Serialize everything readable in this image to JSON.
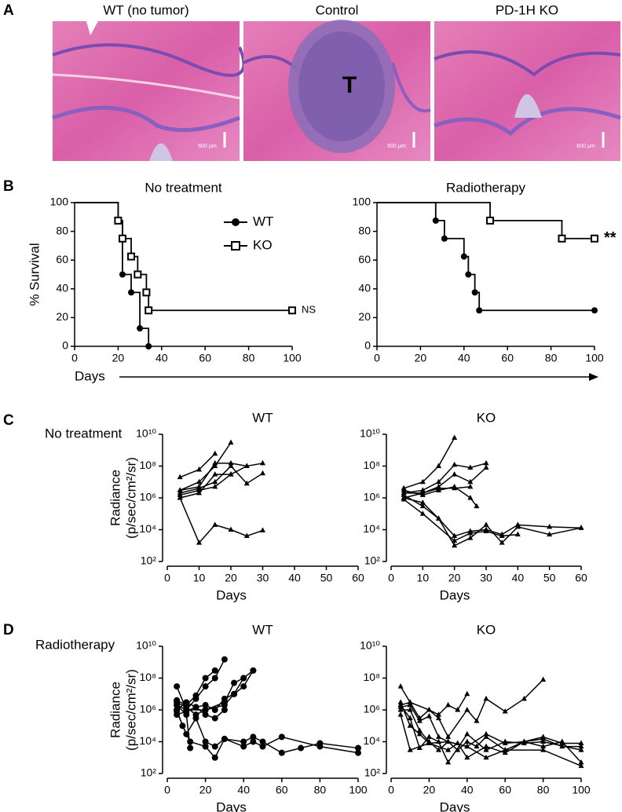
{
  "panel_labels": [
    "A",
    "B",
    "C",
    "D"
  ],
  "images": [
    {
      "title": "WT (no tumor)",
      "scale_label": "600 µm"
    },
    {
      "title": "Control",
      "label": "T",
      "scale_label": "600 µm"
    },
    {
      "title": "PD-1H KO",
      "scale_label": "600 µm"
    }
  ],
  "row_labels": [
    "No treatment",
    "Radiotherapy"
  ],
  "survival_xlabel": "Days",
  "chart_data": [
    {
      "type": "step",
      "title": "No treatment",
      "ylabel": "% Survival",
      "legend": true,
      "annotation": "NS",
      "xlim": [
        0,
        100
      ],
      "xticks": [
        0,
        20,
        40,
        60,
        80,
        100
      ],
      "ylim": [
        0,
        100
      ],
      "yticks": [
        0,
        20,
        40,
        60,
        80,
        100
      ],
      "series": [
        {
          "name": "WT",
          "color": "#000000",
          "marker": "circle",
          "x": [
            0,
            20,
            22,
            26,
            30,
            34
          ],
          "values": [
            100,
            87.5,
            50,
            37.5,
            12.5,
            0
          ]
        },
        {
          "name": "KO",
          "color": "#000000",
          "marker": "square",
          "x": [
            0,
            20,
            22,
            26,
            29,
            33,
            34,
            100
          ],
          "values": [
            100,
            87.5,
            75,
            62.5,
            50,
            37.5,
            25,
            25
          ]
        }
      ]
    },
    {
      "type": "step",
      "title": "Radiotherapy",
      "annotation": "**",
      "xlim": [
        0,
        100
      ],
      "xticks": [
        0,
        20,
        40,
        60,
        80,
        100
      ],
      "ylim": [
        0,
        100
      ],
      "yticks": [
        0,
        20,
        40,
        60,
        80,
        100
      ],
      "series": [
        {
          "color": "#000000",
          "marker": "circle",
          "x": [
            0,
            27,
            31,
            40,
            42,
            45,
            47,
            100
          ],
          "values": [
            100,
            87.5,
            75,
            62.5,
            50,
            37.5,
            25,
            25
          ]
        },
        {
          "color": "#000000",
          "marker": "square",
          "x": [
            0,
            52,
            85,
            100
          ],
          "values": [
            100,
            87.5,
            75,
            75
          ]
        }
      ]
    },
    {
      "type": "line",
      "title": "WT",
      "ylabel_lines": [
        "Radiance",
        "(p/sec/cm²/sr)"
      ],
      "xlabel": "Days",
      "log_y": true,
      "xlim": [
        0,
        60
      ],
      "xticks": [
        0,
        10,
        20,
        30,
        40,
        50,
        60
      ],
      "ylim": [
        100,
        10000000000
      ],
      "yticks": [
        {
          "value": 100,
          "label": "10²"
        },
        {
          "value": 10000,
          "label": "10⁴"
        },
        {
          "value": 1000000,
          "label": "10⁶"
        },
        {
          "value": 100000000,
          "label": "10⁸"
        },
        {
          "value": 10000000000,
          "label": "10¹⁰"
        }
      ],
      "color": "#000000",
      "marker": "triangle",
      "series": [
        {
          "x": [
            4,
            10,
            15
          ],
          "values": [
            20000000.0,
            60000000.0,
            600000000.0
          ]
        },
        {
          "x": [
            4,
            10,
            15,
            20
          ],
          "values": [
            3000000.0,
            10000000.0,
            100000000.0,
            3000000000.0
          ]
        },
        {
          "x": [
            4,
            10,
            15,
            20,
            25,
            30
          ],
          "values": [
            3000000.0,
            5000000.0,
            150000000.0,
            150000000.0,
            100000000.0,
            150000000.0
          ]
        },
        {
          "x": [
            4,
            10,
            15,
            20,
            25,
            30
          ],
          "values": [
            2000000.0,
            4000000.0,
            10000000.0,
            100000000.0,
            8000000.0,
            35000000.0
          ]
        },
        {
          "x": [
            4,
            10,
            15,
            20,
            25
          ],
          "values": [
            1000000.0,
            2000000.0,
            30000000.0,
            30000000.0,
            100000000.0
          ]
        },
        {
          "x": [
            4,
            10,
            15,
            20
          ],
          "values": [
            1500000.0,
            3000000.0,
            5000000.0,
            30000000.0
          ]
        },
        {
          "x": [
            4,
            10,
            15,
            20,
            25,
            30
          ],
          "values": [
            1000000.0,
            1500,
            20000,
            10000,
            4000,
            9000
          ]
        }
      ]
    },
    {
      "type": "line",
      "title": "KO",
      "xlabel": "Days",
      "log_y": true,
      "xlim": [
        0,
        60
      ],
      "xticks": [
        0,
        10,
        20,
        30,
        40,
        50,
        60
      ],
      "ylim": [
        100,
        10000000000
      ],
      "yticks": [
        {
          "value": 100,
          "label": "10²"
        },
        {
          "value": 10000,
          "label": "10⁴"
        },
        {
          "value": 1000000,
          "label": "10⁶"
        },
        {
          "value": 100000000,
          "label": "10⁸"
        },
        {
          "value": 10000000000,
          "label": "10¹⁰"
        }
      ],
      "color": "#000000",
      "marker": "triangle",
      "series": [
        {
          "x": [
            4,
            10,
            15,
            20
          ],
          "values": [
            4000000.0,
            10000000.0,
            100000000.0,
            6000000000.0
          ]
        },
        {
          "x": [
            4,
            10,
            15,
            20,
            25,
            30
          ],
          "values": [
            2000000.0,
            3000000.0,
            10000000.0,
            120000000.0,
            80000000.0,
            150000000.0
          ]
        },
        {
          "x": [
            4,
            10,
            15,
            20,
            25,
            30
          ],
          "values": [
            2000000.0,
            2000000.0,
            5000000.0,
            30000000.0,
            10000000.0,
            80000000.0
          ]
        },
        {
          "x": [
            4,
            10,
            15,
            20,
            25
          ],
          "values": [
            1000000.0,
            2000000.0,
            4000000.0,
            4000000.0,
            5000000.0
          ]
        },
        {
          "x": [
            4,
            10,
            15,
            20,
            25,
            27
          ],
          "values": [
            3000000.0,
            1500000.0,
            3000000.0,
            5000000.0,
            1000000.0,
            300000.0
          ]
        },
        {
          "x": [
            4,
            10,
            15,
            20,
            25,
            30,
            35,
            40,
            50,
            60
          ],
          "values": [
            1500000.0,
            300000.0,
            50000,
            4000,
            8000,
            10000,
            5000,
            20000,
            15000,
            13000
          ]
        },
        {
          "x": [
            4,
            10,
            15,
            20,
            25,
            30,
            35,
            40,
            50,
            60
          ],
          "values": [
            1000000.0,
            500000.0,
            50000,
            1000,
            3000,
            20000,
            1500,
            15000,
            5000,
            13000
          ]
        },
        {
          "x": [
            4,
            10,
            20,
            25,
            30,
            35,
            40
          ],
          "values": [
            800000.0,
            100000.0,
            2000,
            6000,
            8000,
            4000,
            5000
          ]
        }
      ]
    },
    {
      "type": "line",
      "title": "WT",
      "ylabel_lines": [
        "Radiance",
        "(p/sec/cm²/sr)"
      ],
      "xlabel": "Days",
      "log_y": true,
      "xlim": [
        0,
        100
      ],
      "xticks": [
        0,
        20,
        40,
        60,
        80,
        100
      ],
      "ylim": [
        100,
        10000000000
      ],
      "yticks": [
        {
          "value": 100,
          "label": "10²"
        },
        {
          "value": 10000,
          "label": "10⁴"
        },
        {
          "value": 1000000,
          "label": "10⁶"
        },
        {
          "value": 100000000,
          "label": "10⁸"
        },
        {
          "value": 10000000000,
          "label": "10¹⁰"
        }
      ],
      "color": "#000000",
      "marker": "circle",
      "series": [
        {
          "x": [
            5,
            10,
            15,
            20,
            25,
            30
          ],
          "values": [
            30000000.0,
            1000000.0,
            5000000.0,
            30000000.0,
            100000000.0,
            1500000000.0
          ]
        },
        {
          "x": [
            5,
            10,
            15,
            20,
            25
          ],
          "values": [
            4000000.0,
            2000000.0,
            8000000.0,
            100000000.0,
            300000000.0
          ]
        },
        {
          "x": [
            5,
            10,
            20,
            30,
            35,
            40,
            45
          ],
          "values": [
            2000000.0,
            1000000.0,
            1000000.0,
            2000000.0,
            10000000.0,
            30000000.0,
            300000000.0
          ]
        },
        {
          "x": [
            5,
            10,
            15,
            20,
            30,
            35,
            40,
            45
          ],
          "values": [
            3000000.0,
            1500000.0,
            500000.0,
            1000000.0,
            3000000.0,
            50000000.0,
            100000000.0,
            300000000.0
          ]
        },
        {
          "x": [
            5,
            10,
            15,
            20,
            25,
            30,
            35,
            40
          ],
          "values": [
            1000000.0,
            3000000.0,
            1500000.0,
            2000000.0,
            1000000.0,
            5000000.0,
            10000000.0,
            100000000.0
          ]
        },
        {
          "x": [
            5,
            10,
            15,
            20,
            25,
            30
          ],
          "values": [
            500000.0,
            800000.0,
            1500000.0,
            500000.0,
            300000.0,
            1000000.0
          ]
        },
        {
          "x": [
            5,
            8,
            12,
            20,
            25,
            30,
            40,
            45,
            50,
            60,
            70,
            80,
            100
          ],
          "values": [
            1000000.0,
            100000.0,
            10000,
            5000,
            1000,
            15000,
            10000,
            20000,
            10000,
            2000,
            4000,
            8000,
            4000
          ]
        },
        {
          "x": [
            5,
            10,
            15,
            20,
            25,
            30,
            40,
            45,
            50,
            60,
            80,
            100
          ],
          "values": [
            800000.0,
            30000,
            300000.0,
            10000,
            5000,
            15000,
            5000,
            10000,
            5000,
            20000,
            5000,
            2000
          ]
        },
        {
          "x": [
            5,
            10,
            12
          ],
          "values": [
            2000000.0,
            500000.0,
            4000
          ]
        }
      ]
    },
    {
      "type": "line",
      "title": "KO",
      "xlabel": "Days",
      "log_y": true,
      "xlim": [
        0,
        100
      ],
      "xticks": [
        0,
        20,
        40,
        60,
        80,
        100
      ],
      "ylim": [
        100,
        10000000000
      ],
      "yticks": [
        {
          "value": 100,
          "label": "10²"
        },
        {
          "value": 10000,
          "label": "10⁴"
        },
        {
          "value": 1000000,
          "label": "10⁶"
        },
        {
          "value": 100000000,
          "label": "10⁸"
        },
        {
          "value": 10000000000,
          "label": "10¹⁰"
        }
      ],
      "color": "#000000",
      "marker": "triangle",
      "series": [
        {
          "x": [
            5,
            10,
            20,
            25,
            30,
            40,
            45,
            50,
            60,
            70,
            80
          ],
          "values": [
            30000000.0,
            3000000.0,
            1000000.0,
            300000.0,
            20000,
            1000000.0,
            200000.0,
            5000000.0,
            800000.0,
            5000000.0,
            80000000.0
          ]
        },
        {
          "x": [
            5,
            10,
            15,
            20,
            25,
            30,
            35,
            40
          ],
          "values": [
            2000000.0,
            3000000.0,
            300000.0,
            1000000.0,
            500000.0,
            2000000.0,
            1000000.0,
            10000000.0
          ]
        },
        {
          "x": [
            5,
            10,
            15,
            20,
            25,
            30,
            40,
            50,
            60,
            70,
            80,
            90,
            100
          ],
          "values": [
            1500000.0,
            2000000.0,
            200000.0,
            400000.0,
            20000,
            10000,
            5000,
            30000,
            8000,
            10000,
            15000,
            5000,
            5000
          ]
        },
        {
          "x": [
            5,
            10,
            15,
            20,
            25,
            30,
            35,
            40,
            45,
            50,
            60,
            70,
            80,
            90,
            100
          ],
          "values": [
            1000000.0,
            1000000.0,
            50000,
            10000,
            3000,
            10000,
            3000,
            10000,
            5000,
            20000,
            3000,
            10000,
            20000,
            8000,
            8000
          ]
        },
        {
          "x": [
            5,
            10,
            15,
            20,
            25,
            30,
            40,
            50,
            60,
            70,
            80,
            100
          ],
          "values": [
            2000000.0,
            300000.0,
            4000,
            20000,
            10000,
            500,
            30000,
            3000,
            10000,
            8000,
            10000,
            3000
          ]
        },
        {
          "x": [
            5,
            10,
            15,
            20,
            30,
            35,
            40,
            50,
            60,
            70,
            80,
            90,
            100
          ],
          "values": [
            3000000.0,
            100000.0,
            30000,
            8000,
            3000,
            8000,
            1000,
            5000,
            2000,
            10000,
            5000,
            10000,
            500
          ]
        },
        {
          "x": [
            5,
            10,
            20,
            30,
            40,
            50,
            60,
            80,
            100
          ],
          "values": [
            500000.0,
            3000,
            8000,
            10000,
            5000,
            1000,
            3000,
            3000,
            300
          ]
        }
      ]
    }
  ]
}
